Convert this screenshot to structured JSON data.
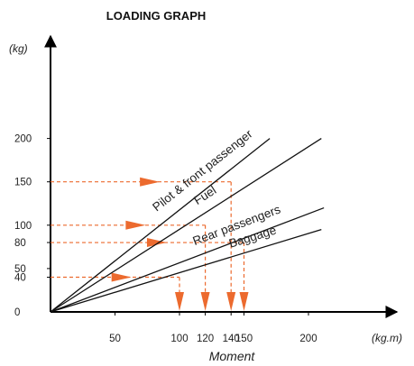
{
  "chart_data": {
    "type": "line",
    "title": "LOADING GRAPH",
    "xlabel": "Moment",
    "xlabel_unit": "(kg.m)",
    "ylabel_unit": "(kg)",
    "xlim": [
      0,
      215
    ],
    "ylim": [
      0,
      225
    ],
    "x_ticks": [
      50,
      100,
      120,
      140,
      150,
      200
    ],
    "y_ticks": [
      0,
      40,
      50,
      80,
      100,
      150,
      200
    ],
    "grid": false,
    "series": [
      {
        "name": "Pilot & front passenger",
        "x": [
          0,
          170
        ],
        "y": [
          0,
          200
        ]
      },
      {
        "name": "Fuel",
        "x": [
          0,
          210
        ],
        "y": [
          0,
          200
        ]
      },
      {
        "name": "Rear passengers",
        "x": [
          0,
          212
        ],
        "y": [
          0,
          120
        ]
      },
      {
        "name": "Baggage",
        "x": [
          0,
          210
        ],
        "y": [
          0,
          95
        ]
      }
    ],
    "examples": [
      {
        "y": 40,
        "x": 100
      },
      {
        "y": 100,
        "x": 120
      },
      {
        "y": 150,
        "x": 140
      },
      {
        "y": 80,
        "x": 150
      }
    ],
    "colors": {
      "axis": "#000000",
      "line": "#111111",
      "annotation": "#ec6a2e"
    }
  }
}
